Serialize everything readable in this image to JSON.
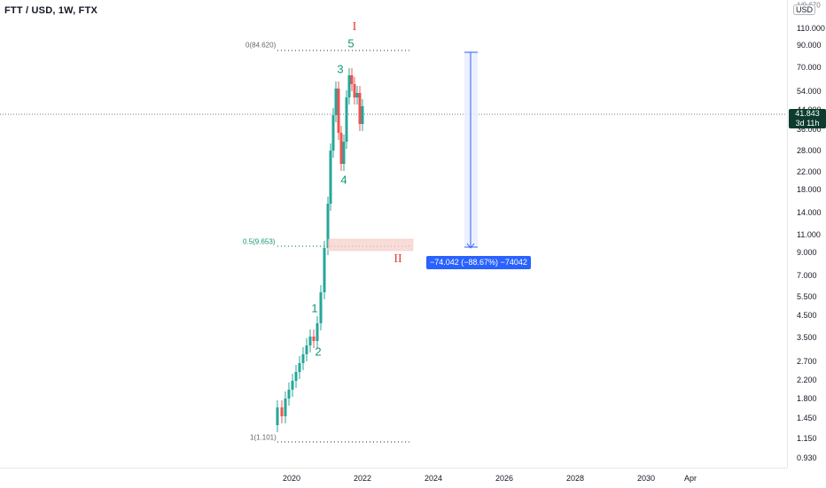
{
  "symbol": {
    "title": "FTT / USD, 1W, FTX"
  },
  "price_axis": {
    "currency_label": "USD",
    "top_partial_label": "1/0.670",
    "ticks": [
      "110.000",
      "90.000",
      "70.000",
      "54.000",
      "44.000",
      "36.000",
      "28.000",
      "22.000",
      "18.000",
      "14.000",
      "11.000",
      "9.000",
      "7.000",
      "5.500",
      "4.500",
      "3.500",
      "2.700",
      "2.200",
      "1.800",
      "1.450",
      "1.150",
      "0.930"
    ],
    "current_price": "41.843",
    "countdown": "3d 11h"
  },
  "time_axis": {
    "ticks": [
      "2020",
      "2022",
      "2024",
      "2026",
      "2028",
      "2030",
      "Apr"
    ]
  },
  "waves": {
    "w1": "1",
    "w2": "2",
    "w3": "3",
    "w4": "4",
    "w5": "5",
    "wave_i": "I",
    "wave_ii": "II"
  },
  "fib": {
    "level_0": "0(84.620)",
    "level_05": "0.5(9.653)",
    "level_1": "1(1.101)"
  },
  "measure": {
    "label": "−74.042 (−88.67%) −74042"
  },
  "colors": {
    "up": "#26a69a",
    "down": "#ef5350",
    "wave": "#139574",
    "roman": "#e53935",
    "accent": "#2962ff"
  }
}
